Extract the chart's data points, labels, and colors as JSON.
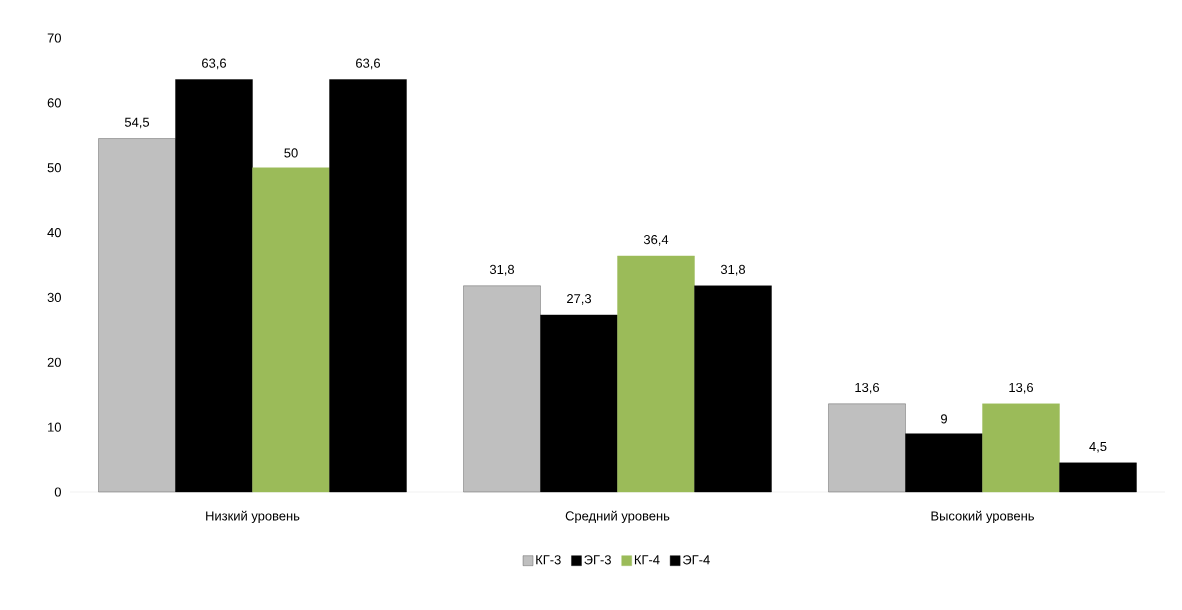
{
  "chart_data": {
    "type": "bar",
    "categories": [
      "Низкий уровень",
      "Средний уровень",
      "Высокий уровень"
    ],
    "series": [
      {
        "name": "КГ-3",
        "color": "#bfbfbf",
        "values": [
          54.5,
          31.8,
          13.6
        ],
        "value_labels": [
          "54,5",
          "31,8",
          "13,6"
        ]
      },
      {
        "name": "ЭГ-3",
        "color": "#000000",
        "values": [
          63.6,
          27.3,
          9
        ],
        "value_labels": [
          "63,6",
          "27,3",
          "9"
        ]
      },
      {
        "name": "КГ-4",
        "color": "#9bbb59",
        "values": [
          50,
          36.4,
          13.6
        ],
        "value_labels": [
          "50",
          "36,4",
          "13,6"
        ]
      },
      {
        "name": "ЭГ-4",
        "color": "#000000",
        "values": [
          63.6,
          31.8,
          4.5
        ],
        "value_labels": [
          "63,6",
          "31,8",
          "4,5"
        ]
      }
    ],
    "ylim": [
      0,
      70
    ],
    "yticks": [
      0,
      10,
      20,
      30,
      40,
      50,
      60,
      70
    ],
    "grid": false,
    "legend": "bottom"
  }
}
